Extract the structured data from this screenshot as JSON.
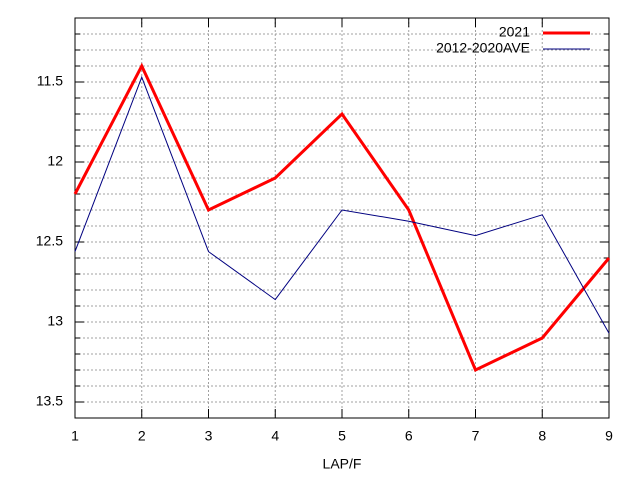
{
  "chart_data": {
    "type": "line",
    "xlabel": "LAP/F",
    "x": [
      1,
      2,
      3,
      4,
      5,
      6,
      7,
      8,
      9
    ],
    "xlim": [
      1,
      9
    ],
    "xticks": [
      1,
      2,
      3,
      4,
      5,
      6,
      7,
      8,
      9
    ],
    "ylim": [
      11.1,
      13.6
    ],
    "y_reversed": true,
    "yticks": [
      11.5,
      12,
      12.5,
      13,
      13.5
    ],
    "y_minor_ticks": [
      11.2,
      11.3,
      11.4,
      11.6,
      11.7,
      11.8,
      11.9,
      12.1,
      12.2,
      12.3,
      12.4,
      12.6,
      12.7,
      12.8,
      12.9,
      13.1,
      13.2,
      13.3,
      13.4,
      13.6
    ],
    "grid": true,
    "legend": "top-right",
    "series": [
      {
        "name": "2021",
        "color": "#ff0000",
        "width": 3,
        "values": [
          12.2,
          11.4,
          12.3,
          12.1,
          11.7,
          12.3,
          13.3,
          13.1,
          12.6
        ]
      },
      {
        "name": "2012-2020AVE",
        "color": "#000080",
        "width": 1,
        "values": [
          12.56,
          11.47,
          12.56,
          12.86,
          12.3,
          12.37,
          12.46,
          12.33,
          13.07
        ]
      }
    ]
  }
}
